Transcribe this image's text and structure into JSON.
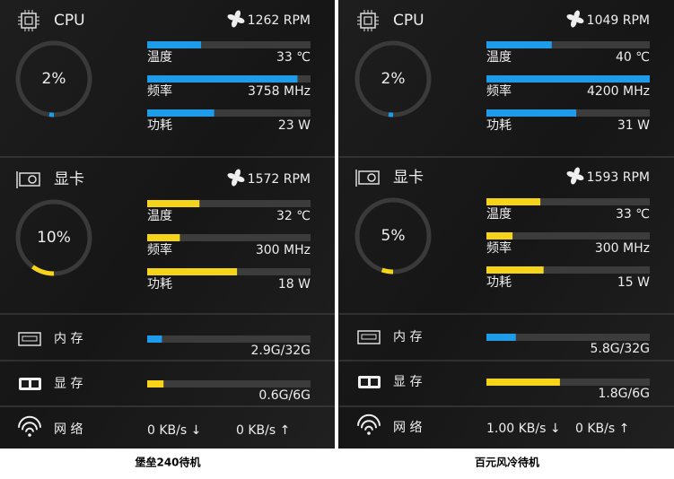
{
  "panels": [
    {
      "caption": "堡垒240待机",
      "cpu": {
        "title": "CPU",
        "fan": "1262 RPM",
        "usage": {
          "value": 2,
          "label": "2%"
        },
        "metrics": [
          {
            "name": "温度",
            "text": "33 ℃",
            "level": 33
          },
          {
            "name": "频率",
            "text": "3758 MHz",
            "level": 92
          },
          {
            "name": "功耗",
            "text": "23 W",
            "level": 41
          }
        ]
      },
      "gpu": {
        "title": "显卡",
        "fan": "1572 RPM",
        "usage": {
          "value": 10,
          "label": "10%"
        },
        "metrics": [
          {
            "name": "温度",
            "text": "32 ℃",
            "level": 32
          },
          {
            "name": "频率",
            "text": "300 MHz",
            "level": 20
          },
          {
            "name": "功耗",
            "text": "18 W",
            "level": 55
          }
        ]
      },
      "memory": {
        "name": "内 存",
        "text": "2.9G/32G",
        "level": 9
      },
      "vram": {
        "name": "显 存",
        "text": "0.6G/6G",
        "level": 10
      },
      "network": {
        "name": "网 络",
        "down": "0 KB/s ↓",
        "up": "0 KB/s ↑"
      }
    },
    {
      "caption": "百元风冷待机",
      "cpu": {
        "title": "CPU",
        "fan": "1049 RPM",
        "usage": {
          "value": 2,
          "label": "2%"
        },
        "metrics": [
          {
            "name": "温度",
            "text": "40 ℃",
            "level": 40
          },
          {
            "name": "频率",
            "text": "4200 MHz",
            "level": 100
          },
          {
            "name": "功耗",
            "text": "31 W",
            "level": 55
          }
        ]
      },
      "gpu": {
        "title": "显卡",
        "fan": "1593 RPM",
        "usage": {
          "value": 5,
          "label": "5%"
        },
        "metrics": [
          {
            "name": "温度",
            "text": "33 ℃",
            "level": 33
          },
          {
            "name": "频率",
            "text": "300 MHz",
            "level": 16
          },
          {
            "name": "功耗",
            "text": "15 W",
            "level": 35
          }
        ]
      },
      "memory": {
        "name": "内 存",
        "text": "5.8G/32G",
        "level": 18
      },
      "vram": {
        "name": "显 存",
        "text": "1.8G/6G",
        "level": 45
      },
      "network": {
        "name": "网 络",
        "down": "1.00 KB/s ↓",
        "up": "0 KB/s ↑"
      }
    }
  ]
}
